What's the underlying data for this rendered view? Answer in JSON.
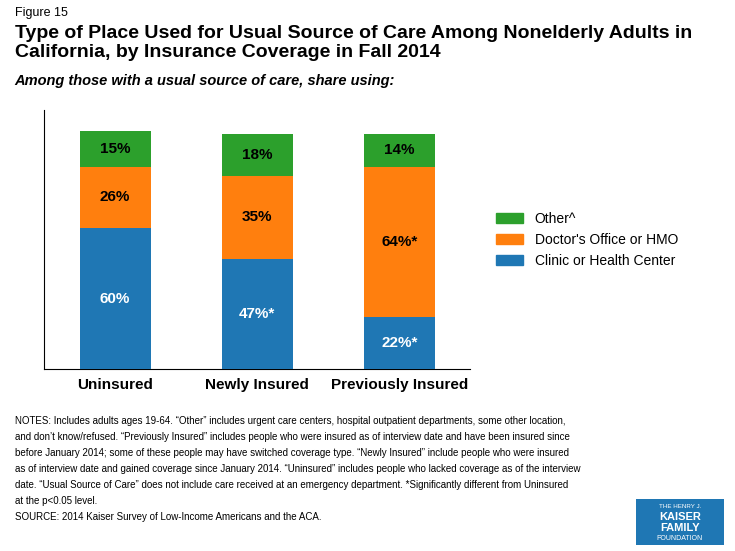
{
  "chart_data": {
    "type": "bar",
    "stacked": true,
    "data_labels": true,
    "tick_labels": "x",
    "legend": "center left",
    "title": "Type of Place Used for Usual Source of Care Among Nonelderly Adults in California, by Insurance Coverage in Fall 2014",
    "subtitle": "Among those with a usual source of care, share using:",
    "categories": [
      "Uninsured",
      "Newly Insured",
      "Previously Insured"
    ],
    "series": [
      {
        "name": "Clinic or Health Center",
        "values": [
          60,
          47,
          22
        ],
        "value_labels": [
          "60%",
          "47%*",
          "22%*"
        ]
      },
      {
        "name": "Doctor's Office or HMO",
        "values": [
          26,
          35,
          64
        ],
        "value_labels": [
          "26%",
          "35%",
          "64%*"
        ]
      },
      {
        "name": "Other^",
        "values": [
          15,
          18,
          14
        ],
        "value_labels": [
          "15%",
          "18%",
          "14%"
        ]
      }
    ],
    "ylim": [
      0,
      110
    ],
    "yticks": [],
    "annotations": {
      "figure_label": "Figure 15",
      "notes": [
        "NOTES: Includes adults ages 19-64. “Other” includes urgent care centers, hospital outpatient departments, some other location,",
        "and don’t know/refused. “Previously Insured” includes people who were insured as of interview date and have been insured since",
        "before January 2014; some of these people may have switched coverage type. “Newly Insured” include people who were insured",
        "as of interview date and gained coverage since January 2014. “Uninsured” includes people who lacked coverage as of the interview",
        "date. “Usual Source of Care” does not include care received at an emergency department. *Significantly different from Uninsured",
        "at the p<0.05 level."
      ],
      "source": "SOURCE: 2014 Kaiser Survey of Low-Income Americans and the ACA.",
      "logo": [
        "THE HENRY J.",
        "KAISER",
        "FAMILY",
        "FOUNDATION"
      ]
    }
  }
}
